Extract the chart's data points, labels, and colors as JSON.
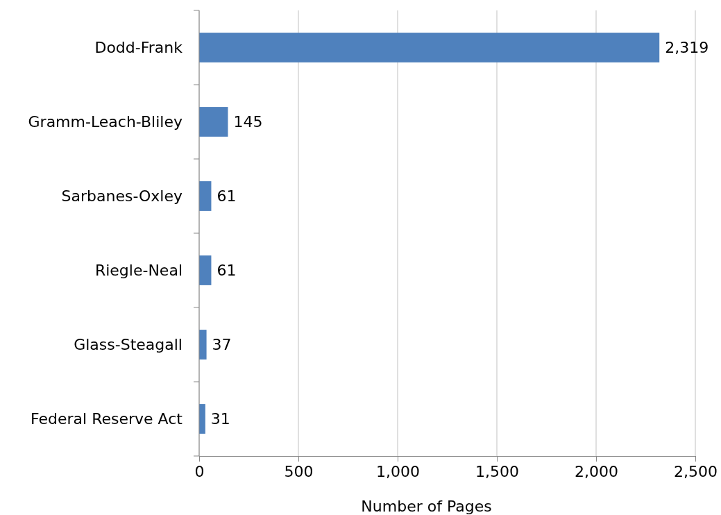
{
  "chart_data": {
    "type": "bar",
    "orientation": "horizontal",
    "xlabel": "Number of Pages",
    "categories": [
      "Dodd-Frank",
      "Gramm-Leach-Bliley",
      "Sarbanes-Oxley",
      "Riegle-Neal",
      "Glass-Steagall",
      "Federal Reserve Act"
    ],
    "values": [
      2319,
      145,
      61,
      61,
      37,
      31
    ],
    "color": "#4f81bd",
    "xlim": [
      0,
      2500
    ],
    "xticks": [
      {
        "value": 0,
        "label": "0"
      },
      {
        "value": 500,
        "label": "500"
      },
      {
        "value": 1000,
        "label": "1,000"
      },
      {
        "value": 1500,
        "label": "1,500"
      },
      {
        "value": 2000,
        "label": "2,000"
      },
      {
        "value": 2500,
        "label": "2,500"
      }
    ],
    "value_labels": [
      "2,319",
      "145",
      "61",
      "61",
      "37",
      "31"
    ],
    "grid": "x"
  }
}
